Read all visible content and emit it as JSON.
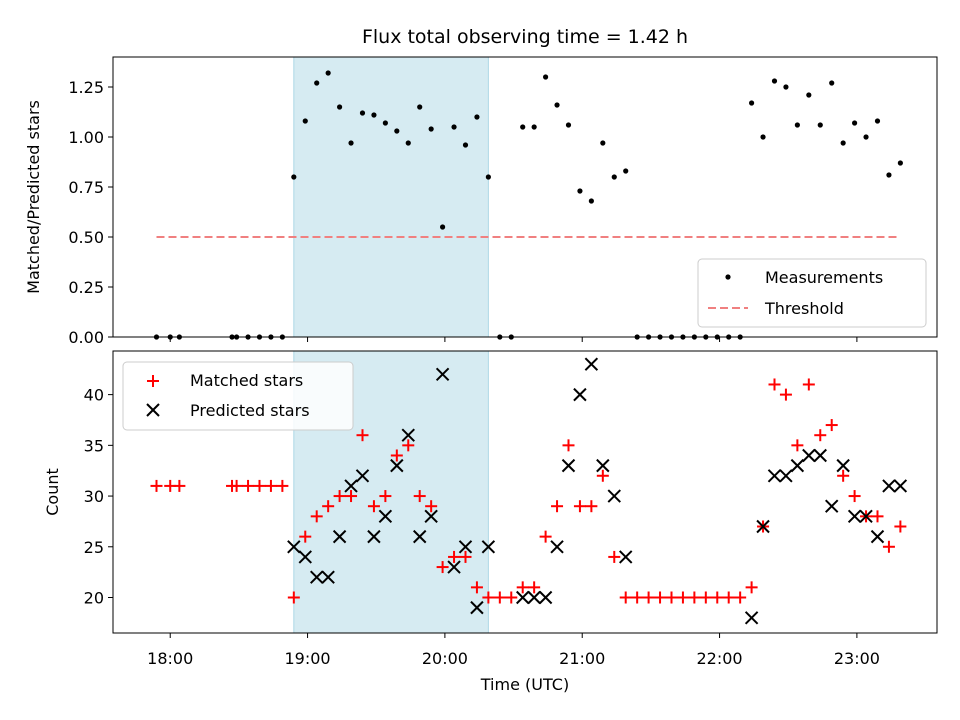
{
  "chart_data": [
    {
      "type": "scatter",
      "title": "Flux total observing time = 1.42 h",
      "xlabel": "",
      "ylabel": "Matched/Predicted stars",
      "xlim": [
        "17:35",
        "23:35"
      ],
      "ylim": [
        0,
        1.4
      ],
      "yticks": [
        "0.00",
        "0.25",
        "0.50",
        "0.75",
        "1.00",
        "1.25"
      ],
      "highlight_span": {
        "start": "18:54",
        "end": "20:19"
      },
      "legend": {
        "position": "lower right",
        "entries": [
          "Measurements",
          "Threshold"
        ]
      },
      "threshold": {
        "name": "Threshold",
        "value": 0.5,
        "x_start": "17:54",
        "x_end": "23:19",
        "color": "#f08080"
      },
      "series": [
        {
          "name": "Measurements",
          "color": "#000000",
          "points": [
            [
              "17:54",
              0
            ],
            [
              "18:00",
              0
            ],
            [
              "18:04",
              0
            ],
            [
              "18:27",
              0
            ],
            [
              "18:29",
              0
            ],
            [
              "18:34",
              0
            ],
            [
              "18:39",
              0
            ],
            [
              "18:44",
              0
            ],
            [
              "18:49",
              0
            ],
            [
              "18:54",
              0.8
            ],
            [
              "18:59",
              1.08
            ],
            [
              "19:04",
              1.27
            ],
            [
              "19:09",
              1.32
            ],
            [
              "19:14",
              1.15
            ],
            [
              "19:19",
              0.97
            ],
            [
              "19:24",
              1.12
            ],
            [
              "19:29",
              1.11
            ],
            [
              "19:34",
              1.07
            ],
            [
              "19:39",
              1.03
            ],
            [
              "19:44",
              0.97
            ],
            [
              "19:49",
              1.15
            ],
            [
              "19:54",
              1.04
            ],
            [
              "19:59",
              0.55
            ],
            [
              "20:04",
              1.05
            ],
            [
              "20:09",
              0.96
            ],
            [
              "20:14",
              1.1
            ],
            [
              "20:19",
              0.8
            ],
            [
              "20:24",
              0
            ],
            [
              "20:29",
              0
            ],
            [
              "20:34",
              1.05
            ],
            [
              "20:39",
              1.05
            ],
            [
              "20:44",
              1.3
            ],
            [
              "20:49",
              1.16
            ],
            [
              "20:54",
              1.06
            ],
            [
              "20:59",
              0.73
            ],
            [
              "21:04",
              0.68
            ],
            [
              "21:09",
              0.97
            ],
            [
              "21:14",
              0.8
            ],
            [
              "21:19",
              0.83
            ],
            [
              "21:24",
              0
            ],
            [
              "21:29",
              0
            ],
            [
              "21:34",
              0
            ],
            [
              "21:39",
              0
            ],
            [
              "21:44",
              0
            ],
            [
              "21:49",
              0
            ],
            [
              "21:54",
              0
            ],
            [
              "21:59",
              0
            ],
            [
              "22:04",
              0
            ],
            [
              "22:09",
              0
            ],
            [
              "22:14",
              1.17
            ],
            [
              "22:19",
              1.0
            ],
            [
              "22:24",
              1.28
            ],
            [
              "22:29",
              1.25
            ],
            [
              "22:34",
              1.06
            ],
            [
              "22:39",
              1.21
            ],
            [
              "22:44",
              1.06
            ],
            [
              "22:49",
              1.27
            ],
            [
              "22:54",
              0.97
            ],
            [
              "22:59",
              1.07
            ],
            [
              "23:04",
              1.0
            ],
            [
              "23:09",
              1.08
            ],
            [
              "23:14",
              0.81
            ],
            [
              "23:19",
              0.87
            ]
          ]
        }
      ]
    },
    {
      "type": "scatter",
      "title": "",
      "xlabel": "Time (UTC)",
      "ylabel": "Count",
      "xlim": [
        "17:35",
        "23:35"
      ],
      "ylim": [
        16.5,
        44.3
      ],
      "yticks": [
        "20",
        "25",
        "30",
        "35",
        "40"
      ],
      "xticks": [
        "18:00",
        "19:00",
        "20:00",
        "21:00",
        "22:00",
        "23:00"
      ],
      "highlight_span": {
        "start": "18:54",
        "end": "20:19"
      },
      "legend": {
        "position": "upper left",
        "entries": [
          "Matched stars",
          "Predicted stars"
        ]
      },
      "series": [
        {
          "name": "Matched stars",
          "marker": "+",
          "color": "#ff0000",
          "points": [
            [
              "17:54",
              31
            ],
            [
              "18:00",
              31
            ],
            [
              "18:04",
              31
            ],
            [
              "18:27",
              31
            ],
            [
              "18:29",
              31
            ],
            [
              "18:34",
              31
            ],
            [
              "18:39",
              31
            ],
            [
              "18:44",
              31
            ],
            [
              "18:49",
              31
            ],
            [
              "18:54",
              20
            ],
            [
              "18:59",
              26
            ],
            [
              "19:04",
              28
            ],
            [
              "19:09",
              29
            ],
            [
              "19:14",
              30
            ],
            [
              "19:19",
              30
            ],
            [
              "19:24",
              36
            ],
            [
              "19:29",
              29
            ],
            [
              "19:34",
              30
            ],
            [
              "19:39",
              34
            ],
            [
              "19:44",
              35
            ],
            [
              "19:49",
              30
            ],
            [
              "19:54",
              29
            ],
            [
              "19:59",
              23
            ],
            [
              "20:04",
              24
            ],
            [
              "20:09",
              24
            ],
            [
              "20:14",
              21
            ],
            [
              "20:19",
              20
            ],
            [
              "20:24",
              20
            ],
            [
              "20:29",
              20
            ],
            [
              "20:34",
              21
            ],
            [
              "20:39",
              21
            ],
            [
              "20:44",
              26
            ],
            [
              "20:49",
              29
            ],
            [
              "20:54",
              35
            ],
            [
              "20:59",
              29
            ],
            [
              "21:04",
              29
            ],
            [
              "21:09",
              32
            ],
            [
              "21:14",
              24
            ],
            [
              "21:19",
              20
            ],
            [
              "21:24",
              20
            ],
            [
              "21:29",
              20
            ],
            [
              "21:34",
              20
            ],
            [
              "21:39",
              20
            ],
            [
              "21:44",
              20
            ],
            [
              "21:49",
              20
            ],
            [
              "21:54",
              20
            ],
            [
              "21:59",
              20
            ],
            [
              "22:04",
              20
            ],
            [
              "22:09",
              20
            ],
            [
              "22:14",
              21
            ],
            [
              "22:19",
              27
            ],
            [
              "22:24",
              41
            ],
            [
              "22:29",
              40
            ],
            [
              "22:34",
              35
            ],
            [
              "22:39",
              41
            ],
            [
              "22:44",
              36
            ],
            [
              "22:49",
              37
            ],
            [
              "22:54",
              32
            ],
            [
              "22:59",
              30
            ],
            [
              "23:04",
              28
            ],
            [
              "23:09",
              28
            ],
            [
              "23:14",
              25
            ],
            [
              "23:19",
              27
            ]
          ]
        },
        {
          "name": "Predicted stars",
          "marker": "x",
          "color": "#000000",
          "points": [
            [
              "18:54",
              25
            ],
            [
              "18:59",
              24
            ],
            [
              "19:04",
              22
            ],
            [
              "19:09",
              22
            ],
            [
              "19:14",
              26
            ],
            [
              "19:19",
              31
            ],
            [
              "19:24",
              32
            ],
            [
              "19:29",
              26
            ],
            [
              "19:34",
              28
            ],
            [
              "19:39",
              33
            ],
            [
              "19:44",
              36
            ],
            [
              "19:49",
              26
            ],
            [
              "19:54",
              28
            ],
            [
              "19:59",
              42
            ],
            [
              "20:04",
              23
            ],
            [
              "20:09",
              25
            ],
            [
              "20:14",
              19
            ],
            [
              "20:19",
              25
            ],
            [
              "20:34",
              20
            ],
            [
              "20:39",
              20
            ],
            [
              "20:44",
              20
            ],
            [
              "20:49",
              25
            ],
            [
              "20:54",
              33
            ],
            [
              "20:59",
              40
            ],
            [
              "21:04",
              43
            ],
            [
              "21:09",
              33
            ],
            [
              "21:14",
              30
            ],
            [
              "21:19",
              24
            ],
            [
              "22:14",
              18
            ],
            [
              "22:19",
              27
            ],
            [
              "22:24",
              32
            ],
            [
              "22:29",
              32
            ],
            [
              "22:34",
              33
            ],
            [
              "22:39",
              34
            ],
            [
              "22:44",
              34
            ],
            [
              "22:49",
              29
            ],
            [
              "22:54",
              33
            ],
            [
              "22:59",
              28
            ],
            [
              "23:04",
              28
            ],
            [
              "23:09",
              26
            ],
            [
              "23:14",
              31
            ],
            [
              "23:19",
              31
            ]
          ]
        }
      ]
    }
  ]
}
